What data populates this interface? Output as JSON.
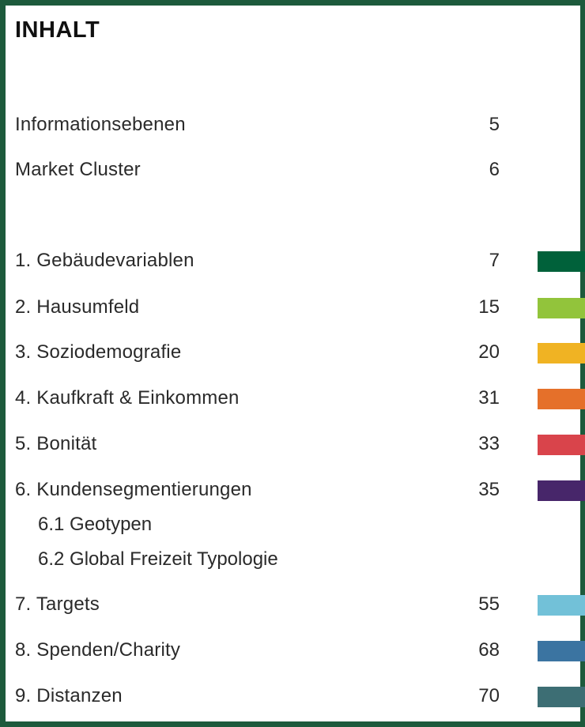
{
  "title": "INHALT",
  "intro": [
    {
      "label": "Informationsebenen",
      "page": "5"
    },
    {
      "label": "Market Cluster",
      "page": "6"
    }
  ],
  "chapters": [
    {
      "label": "1. Gebäudevariablen",
      "page": "7",
      "color": "#00613a"
    },
    {
      "label": "2. Hausumfeld",
      "page": "15",
      "color": "#92c43b"
    },
    {
      "label": "3. Soziodemografie",
      "page": "20",
      "color": "#f0b323"
    },
    {
      "label": "4. Kaufkraft & Einkommen",
      "page": "31",
      "color": "#e5702a"
    },
    {
      "label": "5. Bonität",
      "page": "33",
      "color": "#d9444b"
    },
    {
      "label": "6.  Kundensegmentierungen",
      "page": "35",
      "color": "#47266a"
    },
    {
      "label": "7. Targets",
      "page": "55",
      "color": "#72c1d8"
    },
    {
      "label": "8. Spenden/Charity",
      "page": "68",
      "color": "#3b74a1"
    },
    {
      "label": "9. Distanzen",
      "page": "70",
      "color": "#3d6e74"
    }
  ],
  "subchapters": [
    {
      "label": "6.1 Geotypen"
    },
    {
      "label": "6.2 Global Freizeit Typologie"
    }
  ]
}
